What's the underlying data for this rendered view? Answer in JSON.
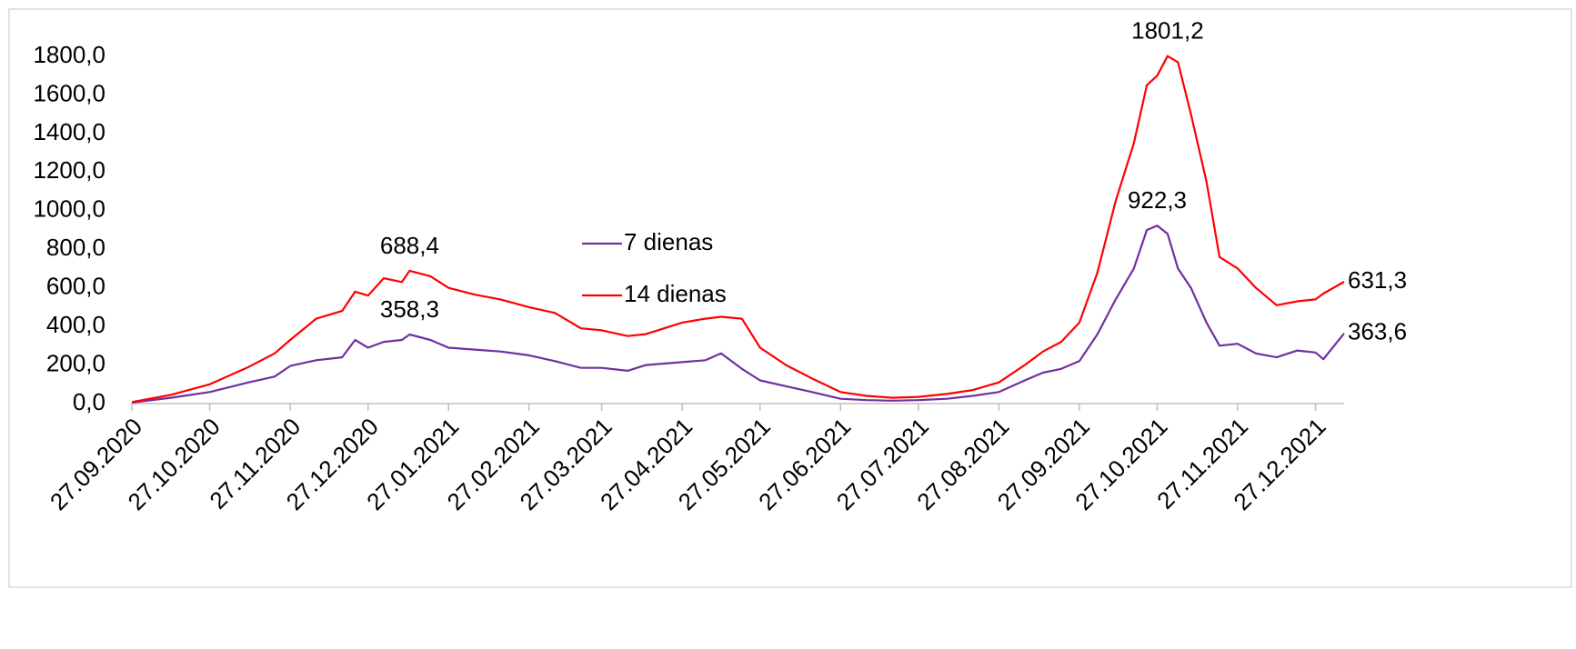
{
  "chart_data": {
    "type": "line",
    "x": [
      "27.09.2020",
      "12.10.2020",
      "27.10.2020",
      "11.11.2020",
      "21.11.2020",
      "27.11.2020",
      "07.12.2020",
      "17.12.2020",
      "22.12.2020",
      "27.12.2020",
      "02.01.2021",
      "09.01.2021",
      "12.01.2021",
      "20.01.2021",
      "27.01.2021",
      "06.02.2021",
      "16.02.2021",
      "27.02.2021",
      "09.03.2021",
      "19.03.2021",
      "27.03.2021",
      "06.04.2021",
      "13.04.2021",
      "27.04.2021",
      "06.05.2021",
      "12.05.2021",
      "20.05.2021",
      "27.05.2021",
      "06.06.2021",
      "16.06.2021",
      "27.06.2021",
      "07.07.2021",
      "17.07.2021",
      "27.07.2021",
      "07.08.2021",
      "17.08.2021",
      "27.08.2021",
      "06.09.2021",
      "13.09.2021",
      "20.09.2021",
      "27.09.2021",
      "04.10.2021",
      "11.10.2021",
      "18.10.2021",
      "23.10.2021",
      "27.10.2021",
      "31.10.2021",
      "04.11.2021",
      "09.11.2021",
      "15.11.2021",
      "20.11.2021",
      "27.11.2021",
      "04.12.2021",
      "12.12.2021",
      "20.12.2021",
      "27.12.2021",
      "30.12.2021",
      "07.01.2022"
    ],
    "series": [
      {
        "name": "7 dienas",
        "color": "#7030a0",
        "values": [
          5,
          30,
          60,
          110,
          140,
          195,
          225,
          240,
          330,
          290,
          320,
          330,
          358.3,
          330,
          290,
          280,
          270,
          250,
          220,
          185,
          185,
          170,
          200,
          215,
          225,
          260,
          180,
          120,
          90,
          60,
          25,
          18,
          15,
          18,
          25,
          40,
          60,
          120,
          160,
          180,
          220,
          360,
          540,
          700,
          900,
          922.3,
          880,
          700,
          600,
          420,
          300,
          310,
          260,
          240,
          275,
          265,
          230,
          363.6
        ],
        "value_labels": [
          null,
          null,
          null,
          null,
          null,
          null,
          null,
          null,
          null,
          null,
          null,
          null,
          "358,3",
          null,
          null,
          null,
          null,
          null,
          null,
          null,
          null,
          null,
          null,
          null,
          null,
          null,
          null,
          null,
          null,
          null,
          null,
          null,
          null,
          null,
          null,
          null,
          null,
          null,
          null,
          null,
          null,
          null,
          null,
          null,
          null,
          "922,3",
          null,
          null,
          null,
          null,
          null,
          null,
          null,
          null,
          null,
          null,
          null,
          "363,6"
        ]
      },
      {
        "name": "14 dienas",
        "color": "#ff0000",
        "values": [
          8,
          45,
          100,
          190,
          260,
          330,
          440,
          480,
          580,
          560,
          650,
          630,
          688.4,
          660,
          600,
          565,
          540,
          500,
          470,
          390,
          380,
          350,
          360,
          420,
          440,
          450,
          440,
          290,
          200,
          130,
          60,
          40,
          30,
          35,
          50,
          70,
          110,
          200,
          270,
          320,
          420,
          680,
          1050,
          1350,
          1650,
          1700,
          1801.2,
          1770,
          1500,
          1150,
          760,
          700,
          600,
          510,
          530,
          540,
          570,
          631.3
        ],
        "value_labels": [
          null,
          null,
          null,
          null,
          null,
          null,
          null,
          null,
          null,
          null,
          null,
          null,
          "688,4",
          null,
          null,
          null,
          null,
          null,
          null,
          null,
          null,
          null,
          null,
          null,
          null,
          null,
          null,
          null,
          null,
          null,
          null,
          null,
          null,
          null,
          null,
          null,
          null,
          null,
          null,
          null,
          null,
          null,
          null,
          null,
          null,
          null,
          "1801,2",
          null,
          null,
          null,
          null,
          null,
          null,
          null,
          null,
          null,
          null,
          "631,3"
        ]
      }
    ],
    "xlim": [
      "27.09.2020",
      "07.01.2022"
    ],
    "xticks": [
      "27.09.2020",
      "27.10.2020",
      "27.11.2020",
      "27.12.2020",
      "27.01.2021",
      "27.02.2021",
      "27.03.2021",
      "27.04.2021",
      "27.05.2021",
      "27.06.2021",
      "27.07.2021",
      "27.08.2021",
      "27.09.2021",
      "27.10.2021",
      "27.11.2021",
      "27.12.2021"
    ],
    "ylim": [
      0,
      1800
    ],
    "yticks": [
      {
        "value": 0,
        "label": "0,0"
      },
      {
        "value": 200,
        "label": "200,0"
      },
      {
        "value": 400,
        "label": "400,0"
      },
      {
        "value": 600,
        "label": "600,0"
      },
      {
        "value": 800,
        "label": "800,0"
      },
      {
        "value": 1000,
        "label": "1000,0"
      },
      {
        "value": 1200,
        "label": "1200,0"
      },
      {
        "value": 1400,
        "label": "1400,0"
      },
      {
        "value": 1600,
        "label": "1600,0"
      },
      {
        "value": 1800,
        "label": "1800,0"
      }
    ],
    "legend": "center"
  }
}
